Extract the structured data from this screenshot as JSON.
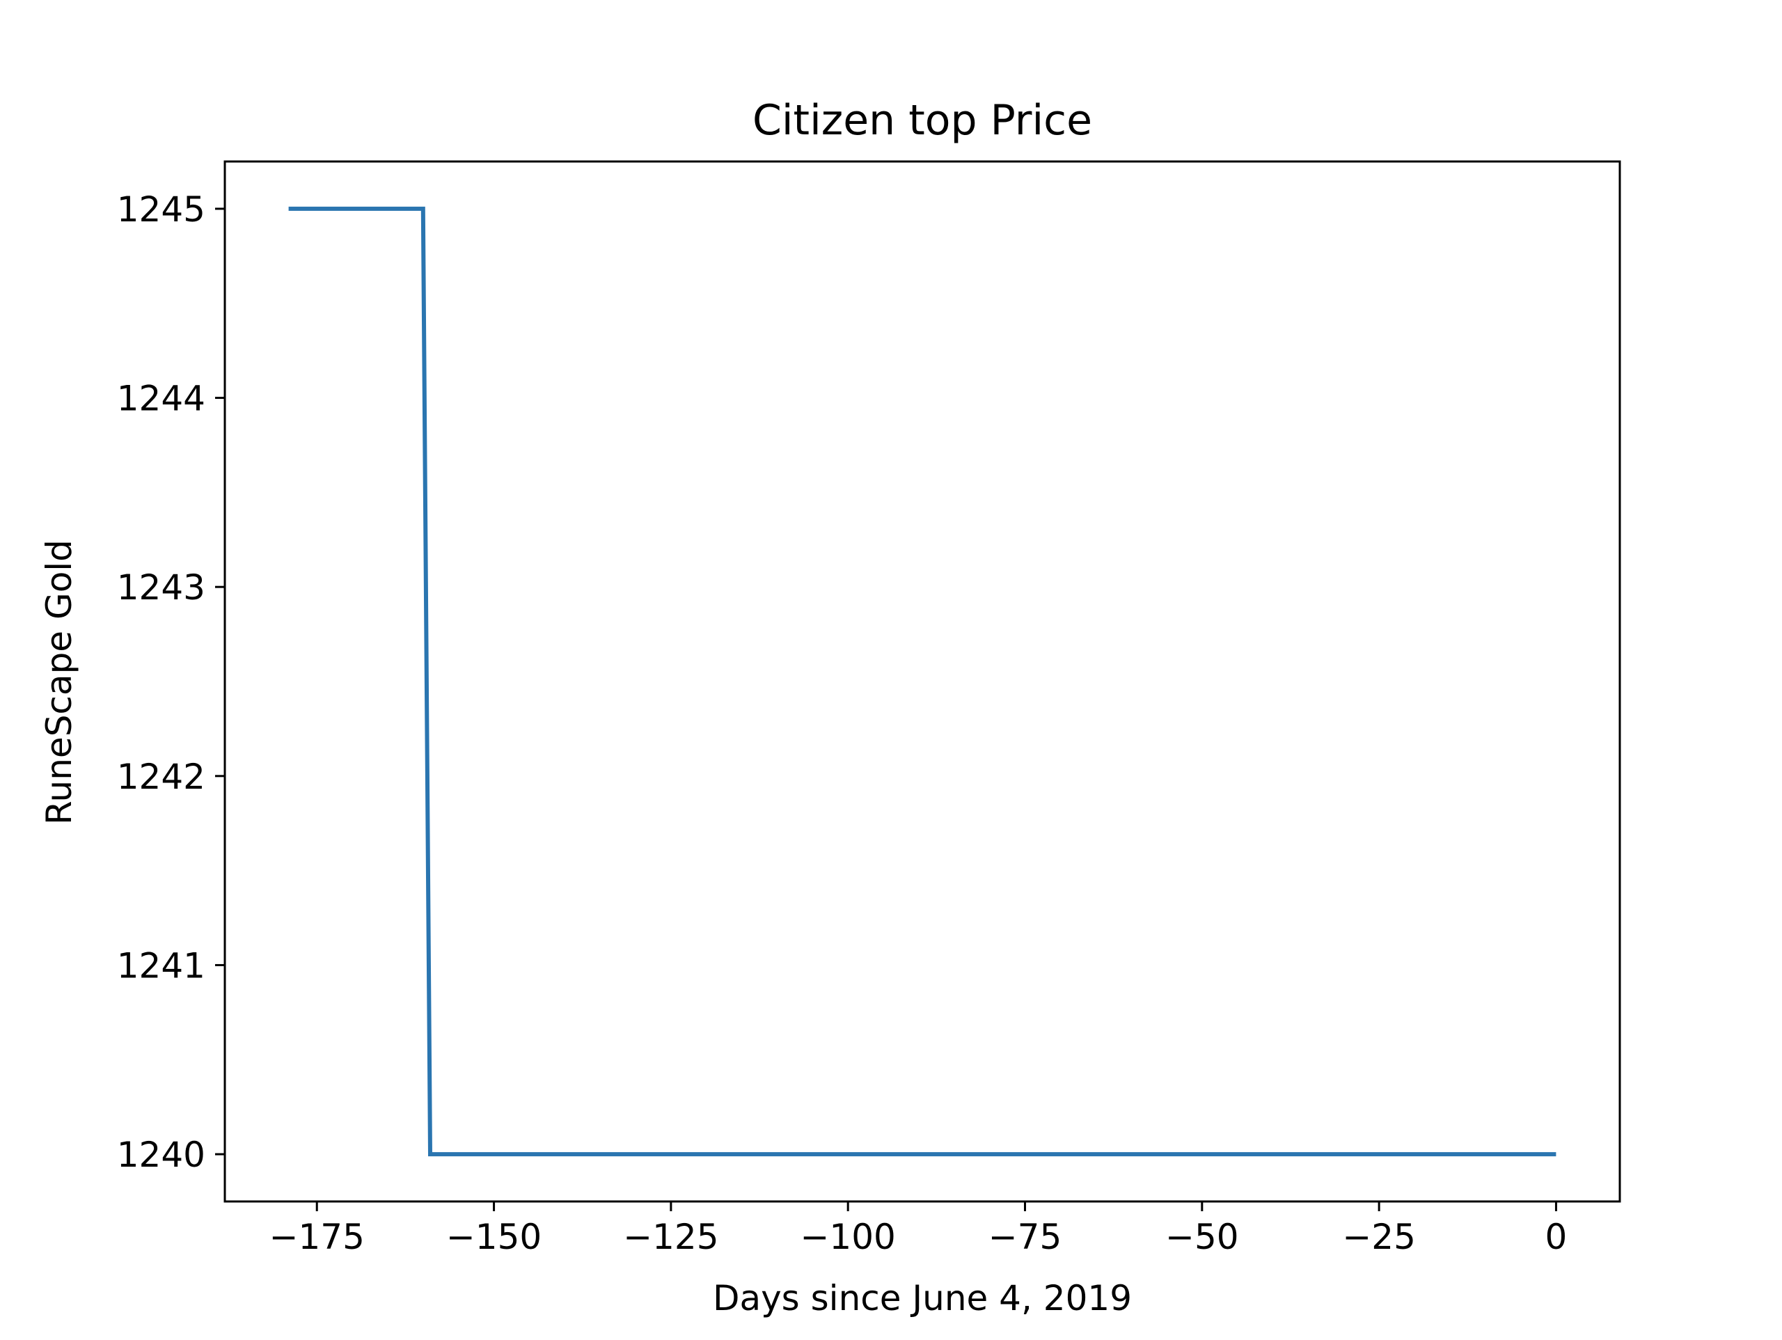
{
  "colors": {
    "line": "#2a75b0",
    "axes": "#000000",
    "background": "#ffffff"
  },
  "chart_data": {
    "type": "line",
    "title": "Citizen top Price",
    "xlabel": "Days since June 4, 2019",
    "ylabel": "RuneScape Gold",
    "xlim": [
      -188,
      9
    ],
    "ylim": [
      1239.75,
      1245.25
    ],
    "xticks": [
      -175,
      -150,
      -125,
      -100,
      -75,
      -50,
      -25,
      0
    ],
    "xtick_labels": [
      "−175",
      "−150",
      "−125",
      "−100",
      "−75",
      "−50",
      "−25",
      "0"
    ],
    "yticks": [
      1240,
      1241,
      1242,
      1243,
      1244,
      1245
    ],
    "ytick_labels": [
      "1240",
      "1241",
      "1242",
      "1243",
      "1244",
      "1245"
    ],
    "grid": false,
    "legend": "none",
    "series": [
      {
        "x": [
          -179,
          -160,
          -159,
          0
        ],
        "y": [
          1245,
          1245,
          1240,
          1240
        ]
      }
    ]
  }
}
